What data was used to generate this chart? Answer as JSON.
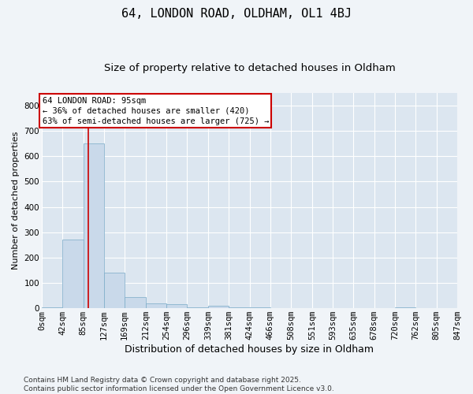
{
  "title1": "64, LONDON ROAD, OLDHAM, OL1 4BJ",
  "title2": "Size of property relative to detached houses in Oldham",
  "xlabel": "Distribution of detached houses by size in Oldham",
  "ylabel": "Number of detached properties",
  "footnote": "Contains HM Land Registry data © Crown copyright and database right 2025.\nContains public sector information licensed under the Open Government Licence v3.0.",
  "bar_color": "#c9d9ea",
  "bar_edge_color": "#7aaac8",
  "bg_color": "#dce6f0",
  "grid_color": "#ffffff",
  "fig_bg_color": "#f0f4f8",
  "annotation_box_color": "#cc0000",
  "annotation_text": "64 LONDON ROAD: 95sqm\n← 36% of detached houses are smaller (420)\n63% of semi-detached houses are larger (725) →",
  "property_line_x": 95,
  "property_line_color": "#cc0000",
  "bin_edges": [
    0,
    42,
    85,
    127,
    169,
    212,
    254,
    296,
    339,
    381,
    424,
    466,
    508,
    551,
    593,
    635,
    678,
    720,
    762,
    805,
    847
  ],
  "bar_heights": [
    5,
    270,
    650,
    140,
    45,
    20,
    15,
    5,
    10,
    5,
    5,
    0,
    0,
    0,
    0,
    0,
    0,
    5,
    0,
    0
  ],
  "ylim": [
    0,
    850
  ],
  "yticks": [
    0,
    100,
    200,
    300,
    400,
    500,
    600,
    700,
    800
  ],
  "title1_fontsize": 11,
  "title2_fontsize": 9.5,
  "xlabel_fontsize": 9,
  "ylabel_fontsize": 8,
  "tick_fontsize": 7.5,
  "annotation_fontsize": 7.5,
  "footnote_fontsize": 6.5
}
